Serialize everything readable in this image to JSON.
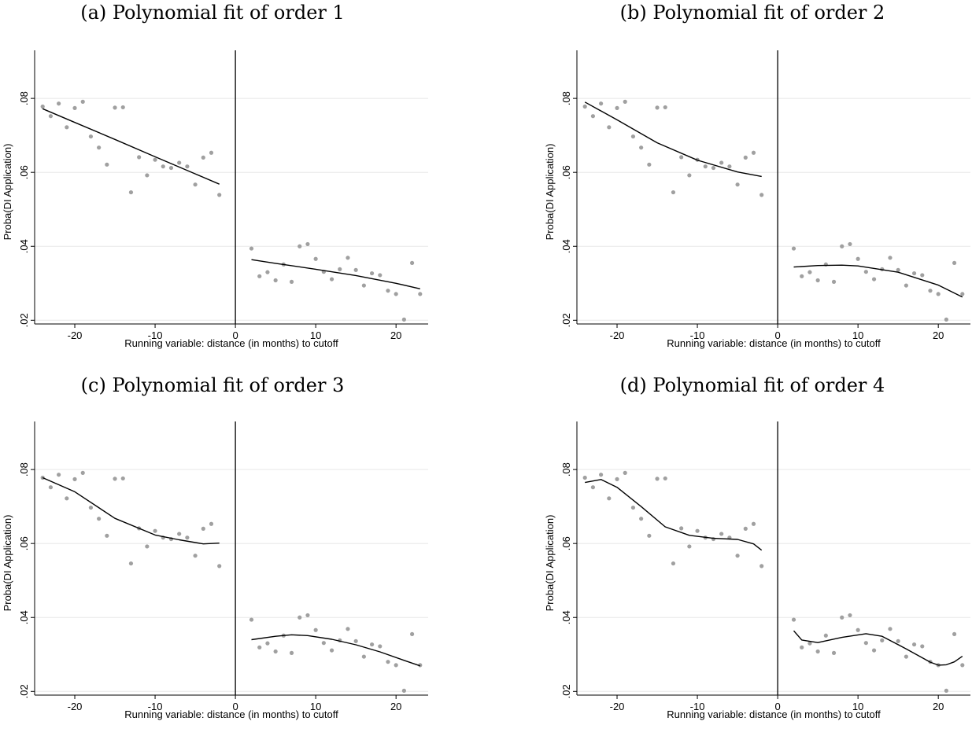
{
  "figure": {
    "x_scatter": [
      -24,
      -23,
      -22,
      -21,
      -20,
      -19,
      -18,
      -17,
      -16,
      -15,
      -14,
      -13,
      -12,
      -11,
      -10,
      -9,
      -8,
      -7,
      -6,
      -5,
      -4,
      -3,
      -2,
      2,
      3,
      4,
      5,
      6,
      7,
      8,
      9,
      10,
      11,
      12,
      13,
      14,
      15,
      16,
      17,
      18,
      19,
      20,
      21,
      22,
      23
    ],
    "y_scatter": [
      0.0778,
      0.0752,
      0.0786,
      0.0722,
      0.0774,
      0.0791,
      0.0697,
      0.0667,
      0.0621,
      0.0775,
      0.0776,
      0.0546,
      0.0641,
      0.0592,
      0.0634,
      0.0616,
      0.0612,
      0.0626,
      0.0616,
      0.0567,
      0.064,
      0.0653,
      0.0539,
      0.0394,
      0.0319,
      0.033,
      0.0308,
      0.0351,
      0.0304,
      0.04,
      0.0406,
      0.0366,
      0.0331,
      0.0311,
      0.0338,
      0.0369,
      0.0336,
      0.0294,
      0.0327,
      0.0322,
      0.028,
      0.0271,
      0.0202,
      0.0355,
      0.0271
    ],
    "ylabel": "Proba(DI Application)",
    "xlabel": "Running variable: distance (in months) to cutoff",
    "yticks": [
      ".02",
      ".04",
      ".06",
      ".08"
    ],
    "xticks": [
      "-20",
      "-10",
      "0",
      "10",
      "20"
    ],
    "point_color": "#a0a0a0",
    "line_color": "#000000"
  },
  "chart_data": [
    {
      "type": "scatter",
      "title": "(a) Polynomial fit of order 1",
      "xlabel": "Running variable: distance (in months) to cutoff",
      "ylabel": "Proba(DI Application)",
      "xlim": [
        -25,
        24
      ],
      "ylim": [
        0.019,
        0.093
      ],
      "cutoff": 0,
      "fit_order": 1,
      "fit_left": {
        "x": [
          -24,
          -20,
          -15,
          -10,
          -5,
          -2
        ],
        "y": [
          0.0772,
          0.0735,
          0.0689,
          0.0642,
          0.0596,
          0.0568
        ]
      },
      "fit_right": {
        "x": [
          2,
          5,
          10,
          15,
          20,
          23
        ],
        "y": [
          0.0364,
          0.0354,
          0.0338,
          0.0321,
          0.03,
          0.0285
        ]
      }
    },
    {
      "type": "scatter",
      "title": "(b) Polynomial fit of order 2",
      "xlabel": "Running variable: distance (in months) to cutoff",
      "ylabel": "Proba(DI Application)",
      "xlim": [
        -25,
        24
      ],
      "ylim": [
        0.019,
        0.093
      ],
      "cutoff": 0,
      "fit_order": 2,
      "fit_left": {
        "x": [
          -24,
          -20,
          -15,
          -10,
          -5,
          -2
        ],
        "y": [
          0.079,
          0.0742,
          0.068,
          0.0633,
          0.0601,
          0.0589
        ]
      },
      "fit_right": {
        "x": [
          2,
          5,
          8,
          10,
          15,
          20,
          23
        ],
        "y": [
          0.0344,
          0.0348,
          0.0349,
          0.0347,
          0.033,
          0.0295,
          0.0263
        ]
      }
    },
    {
      "type": "scatter",
      "title": "(c) Polynomial fit of order 3",
      "xlabel": "Running variable: distance (in months) to cutoff",
      "ylabel": "Proba(DI Application)",
      "xlim": [
        -25,
        24
      ],
      "ylim": [
        0.019,
        0.093
      ],
      "cutoff": 0,
      "fit_order": 3,
      "fit_left": {
        "x": [
          -24,
          -20,
          -15,
          -10,
          -7,
          -4,
          -2
        ],
        "y": [
          0.0778,
          0.074,
          0.0668,
          0.0623,
          0.061,
          0.0599,
          0.0601
        ]
      },
      "fit_right": {
        "x": [
          2,
          5,
          7,
          9,
          12,
          15,
          18,
          21,
          23
        ],
        "y": [
          0.034,
          0.0349,
          0.0353,
          0.0351,
          0.0341,
          0.0326,
          0.0307,
          0.0284,
          0.0269
        ]
      }
    },
    {
      "type": "scatter",
      "title": "(d) Polynomial fit of order 4",
      "xlabel": "Running variable: distance (in months) to cutoff",
      "ylabel": "Proba(DI Application)",
      "xlim": [
        -25,
        24
      ],
      "ylim": [
        0.019,
        0.093
      ],
      "cutoff": 0,
      "fit_order": 4,
      "fit_left": {
        "x": [
          -24,
          -22,
          -20,
          -17,
          -14,
          -11,
          -8,
          -5,
          -3,
          -2
        ],
        "y": [
          0.0765,
          0.0773,
          0.0752,
          0.07,
          0.0645,
          0.0622,
          0.0614,
          0.0611,
          0.0599,
          0.0582
        ]
      },
      "fit_right": {
        "x": [
          2,
          3,
          5,
          8,
          11,
          13,
          16,
          19,
          20,
          21,
          22,
          23
        ],
        "y": [
          0.0364,
          0.0339,
          0.0332,
          0.0346,
          0.0356,
          0.0349,
          0.0315,
          0.0279,
          0.0271,
          0.0272,
          0.028,
          0.0295
        ]
      }
    }
  ]
}
